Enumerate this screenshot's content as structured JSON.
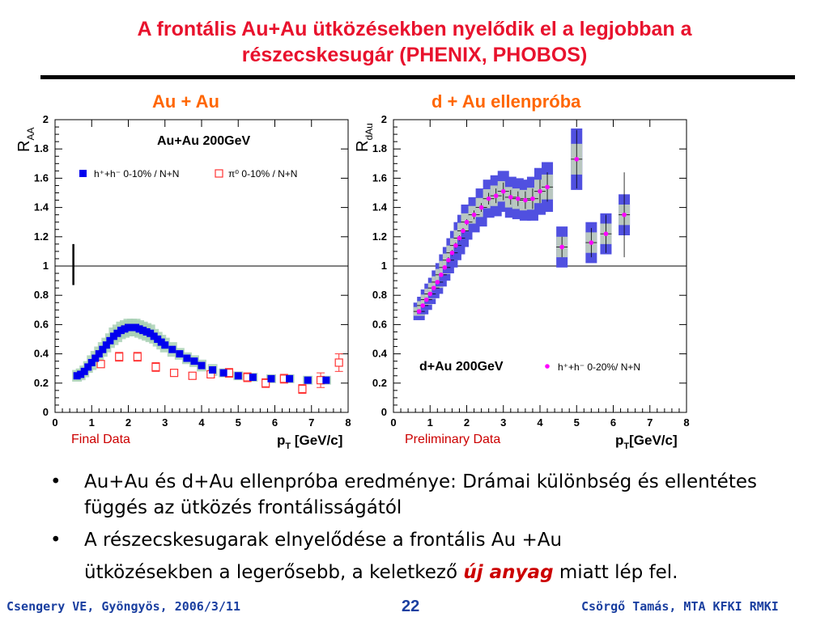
{
  "slide": {
    "title_line1": "A frontális Au+Au ütközésekben nyelődik el a legjobban a",
    "title_line2": "részecskesugár (PHENIX, PHOBOS)",
    "left_panel_title": "Au + Au",
    "right_panel_title": "d + Au ellenpróba",
    "left_note": "Final Data",
    "right_note": "Preliminary Data",
    "bullets": [
      {
        "text": "Au+Au és d+Au ellenpróba eredménye: Drámai különbség és ellentétes függés az ütközés frontálisságától"
      },
      {
        "text_a": "A részecskesugarak elnyelődése a frontális Au +Au",
        "text_b": "ütközésekben a legerősebb, a keletkező ",
        "emph": "új anyag",
        "text_c": " miatt lép fel."
      }
    ],
    "footer_left": "Csengery VE, Gyöngyös, 2006/3/11",
    "page_number": "22",
    "footer_right": "Csörgő Tamás, MTA KFKI RMKI"
  },
  "colors": {
    "title": "#e8122d",
    "panel_title": "#ff6600",
    "footer": "#1a3fa0",
    "filled_square": "#0000ee",
    "open_square": "#ff3333",
    "band_green": "#a8d0b4",
    "band_gray": "#b9c7c0",
    "band_blue": "#5050e0",
    "magenta": "#ff00ff"
  },
  "chart_data": [
    {
      "type": "scatter",
      "inner_title": "Au+Au 200GeV",
      "ylabel": "R",
      "ylabel_sub": "AA",
      "xlabel": "p",
      "xlabel_sub": "T",
      "xlabel_unit": " [GeV/c]",
      "xlim": [
        0,
        8
      ],
      "ylim": [
        0,
        2
      ],
      "xticks": [
        "0",
        "1",
        "2",
        "3",
        "4",
        "5",
        "6",
        "7",
        "8"
      ],
      "yticks": [
        "0",
        "0.2",
        "0.4",
        "0.6",
        "0.8",
        "1",
        "1.2",
        "1.4",
        "1.6",
        "1.8",
        "2"
      ],
      "reference_line": 1,
      "normalization_bar": {
        "x": 0.5,
        "y_low": 0.87,
        "y_high": 1.15
      },
      "series": [
        {
          "name": "h⁺+h⁻ 0-10% / N+N",
          "marker": "filled-square",
          "x": [
            0.6,
            0.7,
            0.8,
            0.9,
            1.0,
            1.1,
            1.2,
            1.3,
            1.4,
            1.5,
            1.6,
            1.7,
            1.8,
            1.9,
            2.0,
            2.1,
            2.2,
            2.3,
            2.4,
            2.5,
            2.6,
            2.7,
            2.8,
            2.9,
            3.0,
            3.2,
            3.4,
            3.6,
            3.8,
            4.0,
            4.3,
            4.6,
            5.0,
            5.4,
            5.9,
            6.4,
            6.9,
            7.4
          ],
          "y": [
            0.25,
            0.26,
            0.28,
            0.31,
            0.34,
            0.37,
            0.4,
            0.43,
            0.46,
            0.49,
            0.52,
            0.54,
            0.56,
            0.57,
            0.58,
            0.58,
            0.58,
            0.57,
            0.56,
            0.55,
            0.54,
            0.52,
            0.5,
            0.48,
            0.46,
            0.43,
            0.4,
            0.37,
            0.35,
            0.32,
            0.29,
            0.27,
            0.25,
            0.24,
            0.23,
            0.23,
            0.22,
            0.22
          ],
          "band": [
            0.04,
            0.04,
            0.04,
            0.04,
            0.05,
            0.05,
            0.05,
            0.05,
            0.05,
            0.05,
            0.06,
            0.06,
            0.06,
            0.06,
            0.06,
            0.06,
            0.06,
            0.06,
            0.06,
            0.06,
            0.06,
            0.05,
            0.05,
            0.05,
            0.05,
            0.05,
            0.04,
            0.04,
            0.04,
            0.04,
            0.04,
            0.03,
            0.03,
            0.03,
            0.03,
            0.03,
            0.03,
            0.03
          ]
        },
        {
          "name": "π⁰ 0-10% / N+N",
          "marker": "open-square",
          "x": [
            1.25,
            1.75,
            2.25,
            2.75,
            3.25,
            3.75,
            4.25,
            4.75,
            5.25,
            5.75,
            6.25,
            6.75,
            7.25,
            7.75
          ],
          "y": [
            0.33,
            0.38,
            0.38,
            0.31,
            0.27,
            0.25,
            0.26,
            0.27,
            0.24,
            0.2,
            0.23,
            0.16,
            0.22,
            0.34
          ],
          "err": [
            0.02,
            0.03,
            0.03,
            0.03,
            0.02,
            0.02,
            0.02,
            0.03,
            0.03,
            0.03,
            0.03,
            0.03,
            0.05,
            0.06
          ]
        }
      ]
    },
    {
      "type": "scatter",
      "inner_title": "d+Au 200GeV",
      "ylabel": "R",
      "ylabel_sub": "dAu",
      "xlabel": "p",
      "xlabel_sub": "T",
      "xlabel_unit": "[GeV/c]",
      "xlim": [
        0,
        8
      ],
      "ylim": [
        0,
        2
      ],
      "xticks": [
        "0",
        "1",
        "2",
        "3",
        "4",
        "5",
        "6",
        "7",
        "8"
      ],
      "yticks": [
        "0",
        "0.2",
        "0.4",
        "0.6",
        "0.8",
        "1",
        "1.2",
        "1.4",
        "1.6",
        "1.8",
        "2"
      ],
      "reference_line": 1,
      "series": [
        {
          "name": "h⁺+h⁻ 0-20%/ N+N",
          "marker": "magenta-dot",
          "x": [
            0.7,
            0.8,
            0.9,
            1.0,
            1.1,
            1.2,
            1.3,
            1.4,
            1.5,
            1.6,
            1.7,
            1.8,
            1.9,
            2.0,
            2.2,
            2.4,
            2.6,
            2.8,
            3.0,
            3.2,
            3.4,
            3.6,
            3.8,
            4.0,
            4.2,
            4.6,
            5.0,
            5.4,
            5.8,
            6.3
          ],
          "y": [
            0.69,
            0.73,
            0.77,
            0.81,
            0.85,
            0.89,
            0.94,
            0.99,
            1.04,
            1.09,
            1.14,
            1.19,
            1.24,
            1.3,
            1.35,
            1.4,
            1.46,
            1.48,
            1.51,
            1.47,
            1.46,
            1.45,
            1.46,
            1.51,
            1.54,
            1.13,
            1.73,
            1.16,
            1.22,
            1.35
          ],
          "band": [
            0.06,
            0.06,
            0.07,
            0.07,
            0.07,
            0.08,
            0.08,
            0.09,
            0.09,
            0.1,
            0.1,
            0.11,
            0.11,
            0.12,
            0.12,
            0.13,
            0.13,
            0.14,
            0.14,
            0.14,
            0.14,
            0.14,
            0.15,
            0.16,
            0.17,
            0.14,
            0.21,
            0.14,
            0.14,
            0.14
          ],
          "err": [
            0.01,
            0.01,
            0.01,
            0.01,
            0.01,
            0.01,
            0.01,
            0.01,
            0.02,
            0.02,
            0.02,
            0.02,
            0.02,
            0.02,
            0.03,
            0.03,
            0.04,
            0.05,
            0.06,
            0.05,
            0.05,
            0.06,
            0.07,
            0.08,
            0.1,
            0.07,
            0.2,
            0.1,
            0.13,
            0.29
          ]
        }
      ]
    }
  ]
}
